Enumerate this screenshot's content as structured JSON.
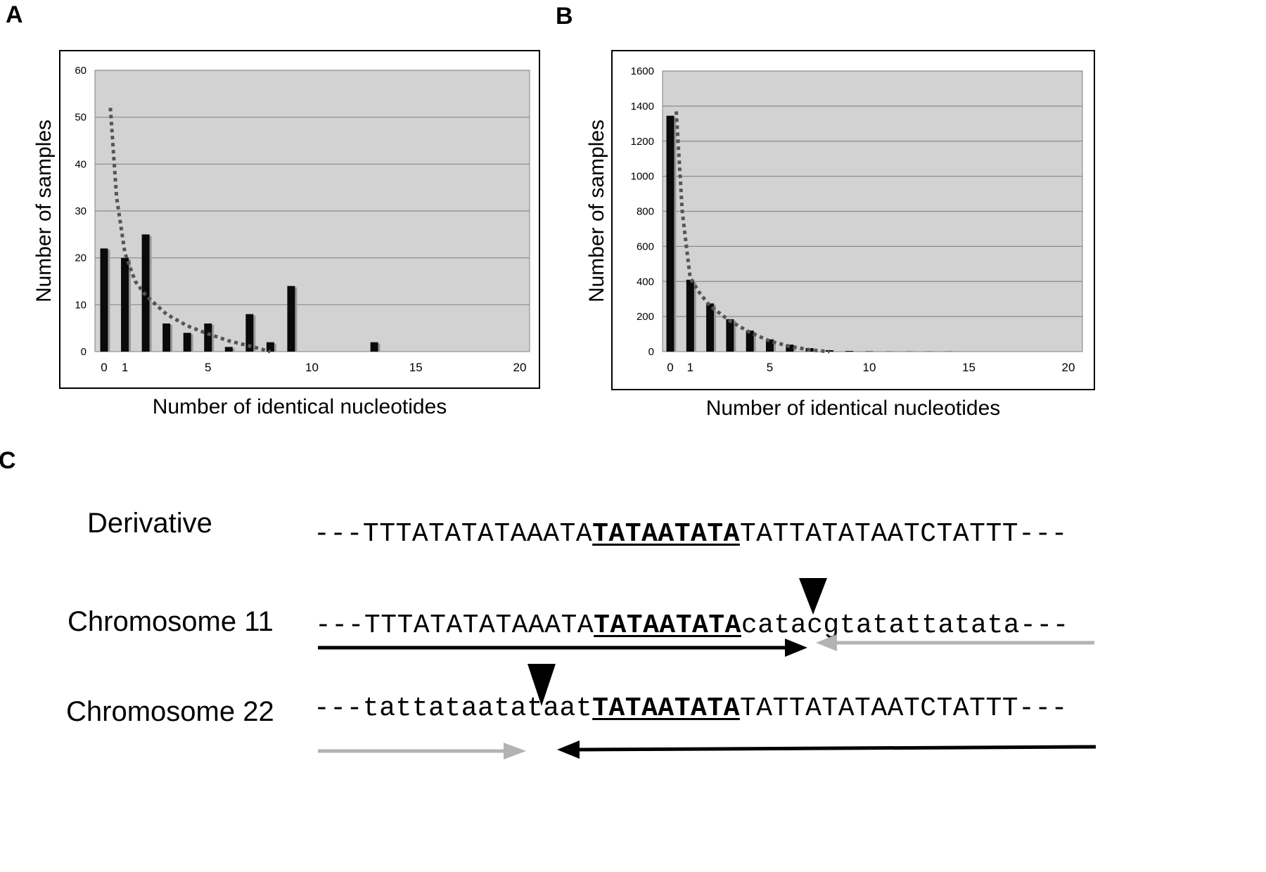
{
  "panels": [
    {
      "letter": "A"
    },
    {
      "letter": "B"
    },
    {
      "letter": "C"
    }
  ],
  "chart_data": [
    {
      "type": "bar",
      "xlabel": "Number of identical nucleotides",
      "ylabel": "Number of samples",
      "xlim": [
        0,
        20
      ],
      "ylim": [
        0,
        60
      ],
      "xticks": [
        "0",
        "1",
        "5",
        "10",
        "15",
        "20"
      ],
      "yticks": [
        "0",
        "10",
        "20",
        "30",
        "40",
        "50",
        "60"
      ],
      "grid": true,
      "x": [
        0,
        1,
        2,
        3,
        4,
        5,
        6,
        7,
        8,
        9,
        13
      ],
      "values": [
        22,
        20,
        25,
        6,
        4,
        6,
        1,
        8,
        2,
        14,
        2
      ],
      "trend": {
        "x": [
          0.3,
          0.6,
          1.0,
          1.5,
          2.0,
          3.0,
          4.0,
          5.0,
          6.0,
          7.0,
          8.0
        ],
        "y": [
          52,
          33,
          21,
          15,
          12,
          8,
          5.5,
          3.8,
          2.3,
          1.2,
          0
        ]
      }
    },
    {
      "type": "bar",
      "xlabel": "Number of identical nucleotides",
      "ylabel": "Number of samples",
      "xlim": [
        0,
        20
      ],
      "ylim": [
        0,
        1600
      ],
      "xticks": [
        "0",
        "1",
        "5",
        "10",
        "15",
        "20"
      ],
      "yticks": [
        "0",
        "200",
        "400",
        "600",
        "800",
        "1000",
        "1200",
        "1400",
        "1600"
      ],
      "grid": true,
      "x": [
        0,
        1,
        2,
        3,
        4,
        5,
        6,
        7,
        8,
        9,
        10,
        11,
        12,
        13,
        14
      ],
      "values": [
        1345,
        410,
        275,
        185,
        120,
        70,
        40,
        20,
        8,
        4,
        2,
        1,
        1,
        1,
        1
      ],
      "trend": {
        "x": [
          0.3,
          0.6,
          1.0,
          1.5,
          2.0,
          3.0,
          4.0,
          5.0,
          6.0,
          7.0,
          8.0
        ],
        "y": [
          1370,
          800,
          420,
          330,
          260,
          175,
          110,
          60,
          30,
          10,
          0
        ]
      }
    }
  ],
  "sequences": [
    {
      "label": "Derivative",
      "left": "---TTTATATATAAATA",
      "core": "TATAATATA",
      "right": "TATTATATAATCTATTT---"
    },
    {
      "label": "Chromosome 11",
      "left": "---TTTATATATAAATA",
      "core": "TATAATATA",
      "right": "catacgtatattatata---"
    },
    {
      "label": "Chromosome 22",
      "left": "---tattataatataat",
      "core": "TATAATATA",
      "right": "TATTATATAATCTATTT---"
    }
  ]
}
